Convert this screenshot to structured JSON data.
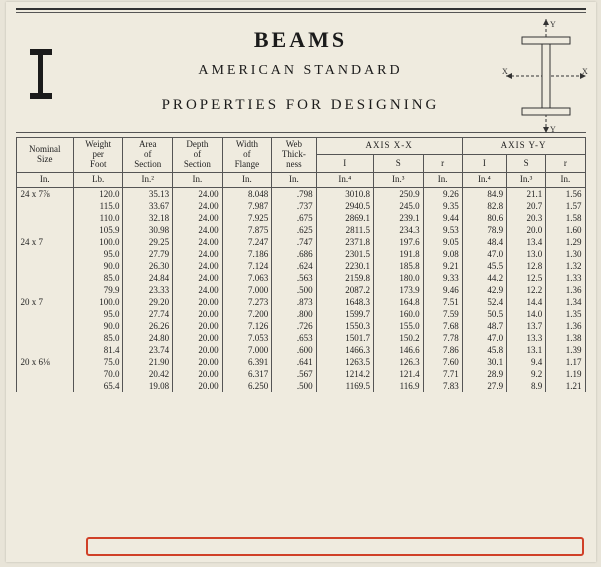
{
  "titles": {
    "t1": "BEAMS",
    "t2": "AMERICAN STANDARD",
    "t3": "PROPERTIES FOR DESIGNING"
  },
  "diagram": {
    "x_label": "X",
    "y_label": "Y"
  },
  "head": {
    "nominal": "Nominal\nSize",
    "weight": "Weight\nper\nFoot",
    "area": "Area\nof\nSection",
    "depth": "Depth\nof\nSection",
    "flange_w": "Width\nof\nFlange",
    "web_t": "Web\nThick-\nness",
    "axis_xx": "AXIS X-X",
    "axis_yy": "AXIS Y-Y",
    "I": "I",
    "S": "S",
    "r": "r"
  },
  "units": {
    "nominal": "In.",
    "weight": "Lb.",
    "area": "In.²",
    "depth": "In.",
    "flange_w": "In.",
    "web_t": "In.",
    "Ixx": "In.⁴",
    "Sxx": "In.³",
    "rxx": "In.",
    "Iyy": "In.⁴",
    "Syy": "In.³",
    "ryy": "In."
  },
  "groups": [
    {
      "nominal": "24 x 7⅞",
      "rows": [
        [
          "120.0",
          "35.13",
          "24.00",
          "8.048",
          ".798",
          "3010.8",
          "250.9",
          "9.26",
          "84.9",
          "21.1",
          "1.56"
        ],
        [
          "115.0",
          "33.67",
          "24.00",
          "7.987",
          ".737",
          "2940.5",
          "245.0",
          "9.35",
          "82.8",
          "20.7",
          "1.57"
        ],
        [
          "110.0",
          "32.18",
          "24.00",
          "7.925",
          ".675",
          "2869.1",
          "239.1",
          "9.44",
          "80.6",
          "20.3",
          "1.58"
        ],
        [
          "105.9",
          "30.98",
          "24.00",
          "7.875",
          ".625",
          "2811.5",
          "234.3",
          "9.53",
          "78.9",
          "20.0",
          "1.60"
        ]
      ]
    },
    {
      "nominal": "24 x 7",
      "rows": [
        [
          "100.0",
          "29.25",
          "24.00",
          "7.247",
          ".747",
          "2371.8",
          "197.6",
          "9.05",
          "48.4",
          "13.4",
          "1.29"
        ],
        [
          "95.0",
          "27.79",
          "24.00",
          "7.186",
          ".686",
          "2301.5",
          "191.8",
          "9.08",
          "47.0",
          "13.0",
          "1.30"
        ],
        [
          "90.0",
          "26.30",
          "24.00",
          "7.124",
          ".624",
          "2230.1",
          "185.8",
          "9.21",
          "45.5",
          "12.8",
          "1.32"
        ],
        [
          "85.0",
          "24.84",
          "24.00",
          "7.063",
          ".563",
          "2159.8",
          "180.0",
          "9.33",
          "44.2",
          "12.5",
          "1.33"
        ],
        [
          "79.9",
          "23.33",
          "24.00",
          "7.000",
          ".500",
          "2087.2",
          "173.9",
          "9.46",
          "42.9",
          "12.2",
          "1.36"
        ]
      ]
    },
    {
      "nominal": "20 x 7",
      "rows": [
        [
          "100.0",
          "29.20",
          "20.00",
          "7.273",
          ".873",
          "1648.3",
          "164.8",
          "7.51",
          "52.4",
          "14.4",
          "1.34"
        ],
        [
          "95.0",
          "27.74",
          "20.00",
          "7.200",
          ".800",
          "1599.7",
          "160.0",
          "7.59",
          "50.5",
          "14.0",
          "1.35"
        ],
        [
          "90.0",
          "26.26",
          "20.00",
          "7.126",
          ".726",
          "1550.3",
          "155.0",
          "7.68",
          "48.7",
          "13.7",
          "1.36"
        ],
        [
          "85.0",
          "24.80",
          "20.00",
          "7.053",
          ".653",
          "1501.7",
          "150.2",
          "7.78",
          "47.0",
          "13.3",
          "1.38"
        ],
        [
          "81.4",
          "23.74",
          "20.00",
          "7.000",
          ".600",
          "1466.3",
          "146.6",
          "7.86",
          "45.8",
          "13.1",
          "1.39"
        ]
      ]
    },
    {
      "nominal": "20 x 6⅛",
      "rows": [
        [
          "75.0",
          "21.90",
          "20.00",
          "6.391",
          ".641",
          "1263.5",
          "126.3",
          "7.60",
          "30.1",
          "9.4",
          "1.17"
        ],
        [
          "70.0",
          "20.42",
          "20.00",
          "6.317",
          ".567",
          "1214.2",
          "121.4",
          "7.71",
          "28.9",
          "9.2",
          "1.19"
        ],
        [
          "65.4",
          "19.08",
          "20.00",
          "6.250",
          ".500",
          "1169.5",
          "116.9",
          "7.83",
          "27.9",
          "8.9",
          "1.21"
        ]
      ],
      "highlight_last": true
    }
  ]
}
